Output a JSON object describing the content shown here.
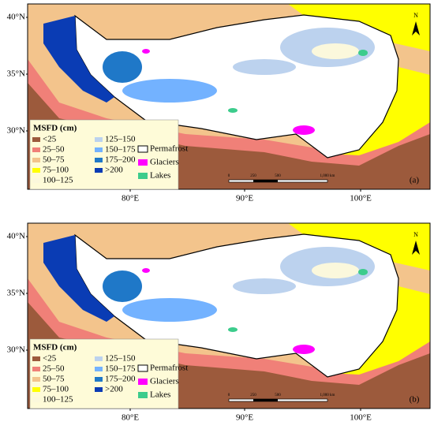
{
  "panels": [
    {
      "label": "(a)",
      "lat_labels": [
        "40°N",
        "35°N",
        "30°N"
      ],
      "lon_labels": [
        "80°E",
        "90°E",
        "100°E"
      ]
    },
    {
      "label": "(b)",
      "lat_labels": [
        "40°N",
        "35°N",
        "30°N"
      ],
      "lon_labels": [
        "80°E",
        "90°E",
        "100°E"
      ]
    }
  ],
  "north": "N",
  "scale_labels": [
    "0",
    "250",
    "500",
    "1,000 km"
  ],
  "legend": {
    "title": "MSFD (cm)",
    "classes": [
      {
        "label": "<25",
        "color": "#9c5a3c"
      },
      {
        "label": "25–50",
        "color": "#f08078"
      },
      {
        "label": "50–75",
        "color": "#f3c48c"
      },
      {
        "label": "75–100",
        "color": "#ffff00"
      },
      {
        "label": "100–125",
        "color": "#fbf8dc"
      },
      {
        "label": "125–150",
        "color": "#bcd2ee"
      },
      {
        "label": "150–175",
        "color": "#73b2ff"
      },
      {
        "label": "175–200",
        "color": "#1f78c8"
      },
      {
        "label": ">200",
        "color": "#0a3cb4"
      }
    ],
    "overlays": [
      {
        "label": "Permafrost",
        "color": "#ffffff"
      },
      {
        "label": "Glaciers",
        "color": "#ff00ff"
      },
      {
        "label": "Lakes",
        "color": "#3ccc8c"
      }
    ]
  }
}
